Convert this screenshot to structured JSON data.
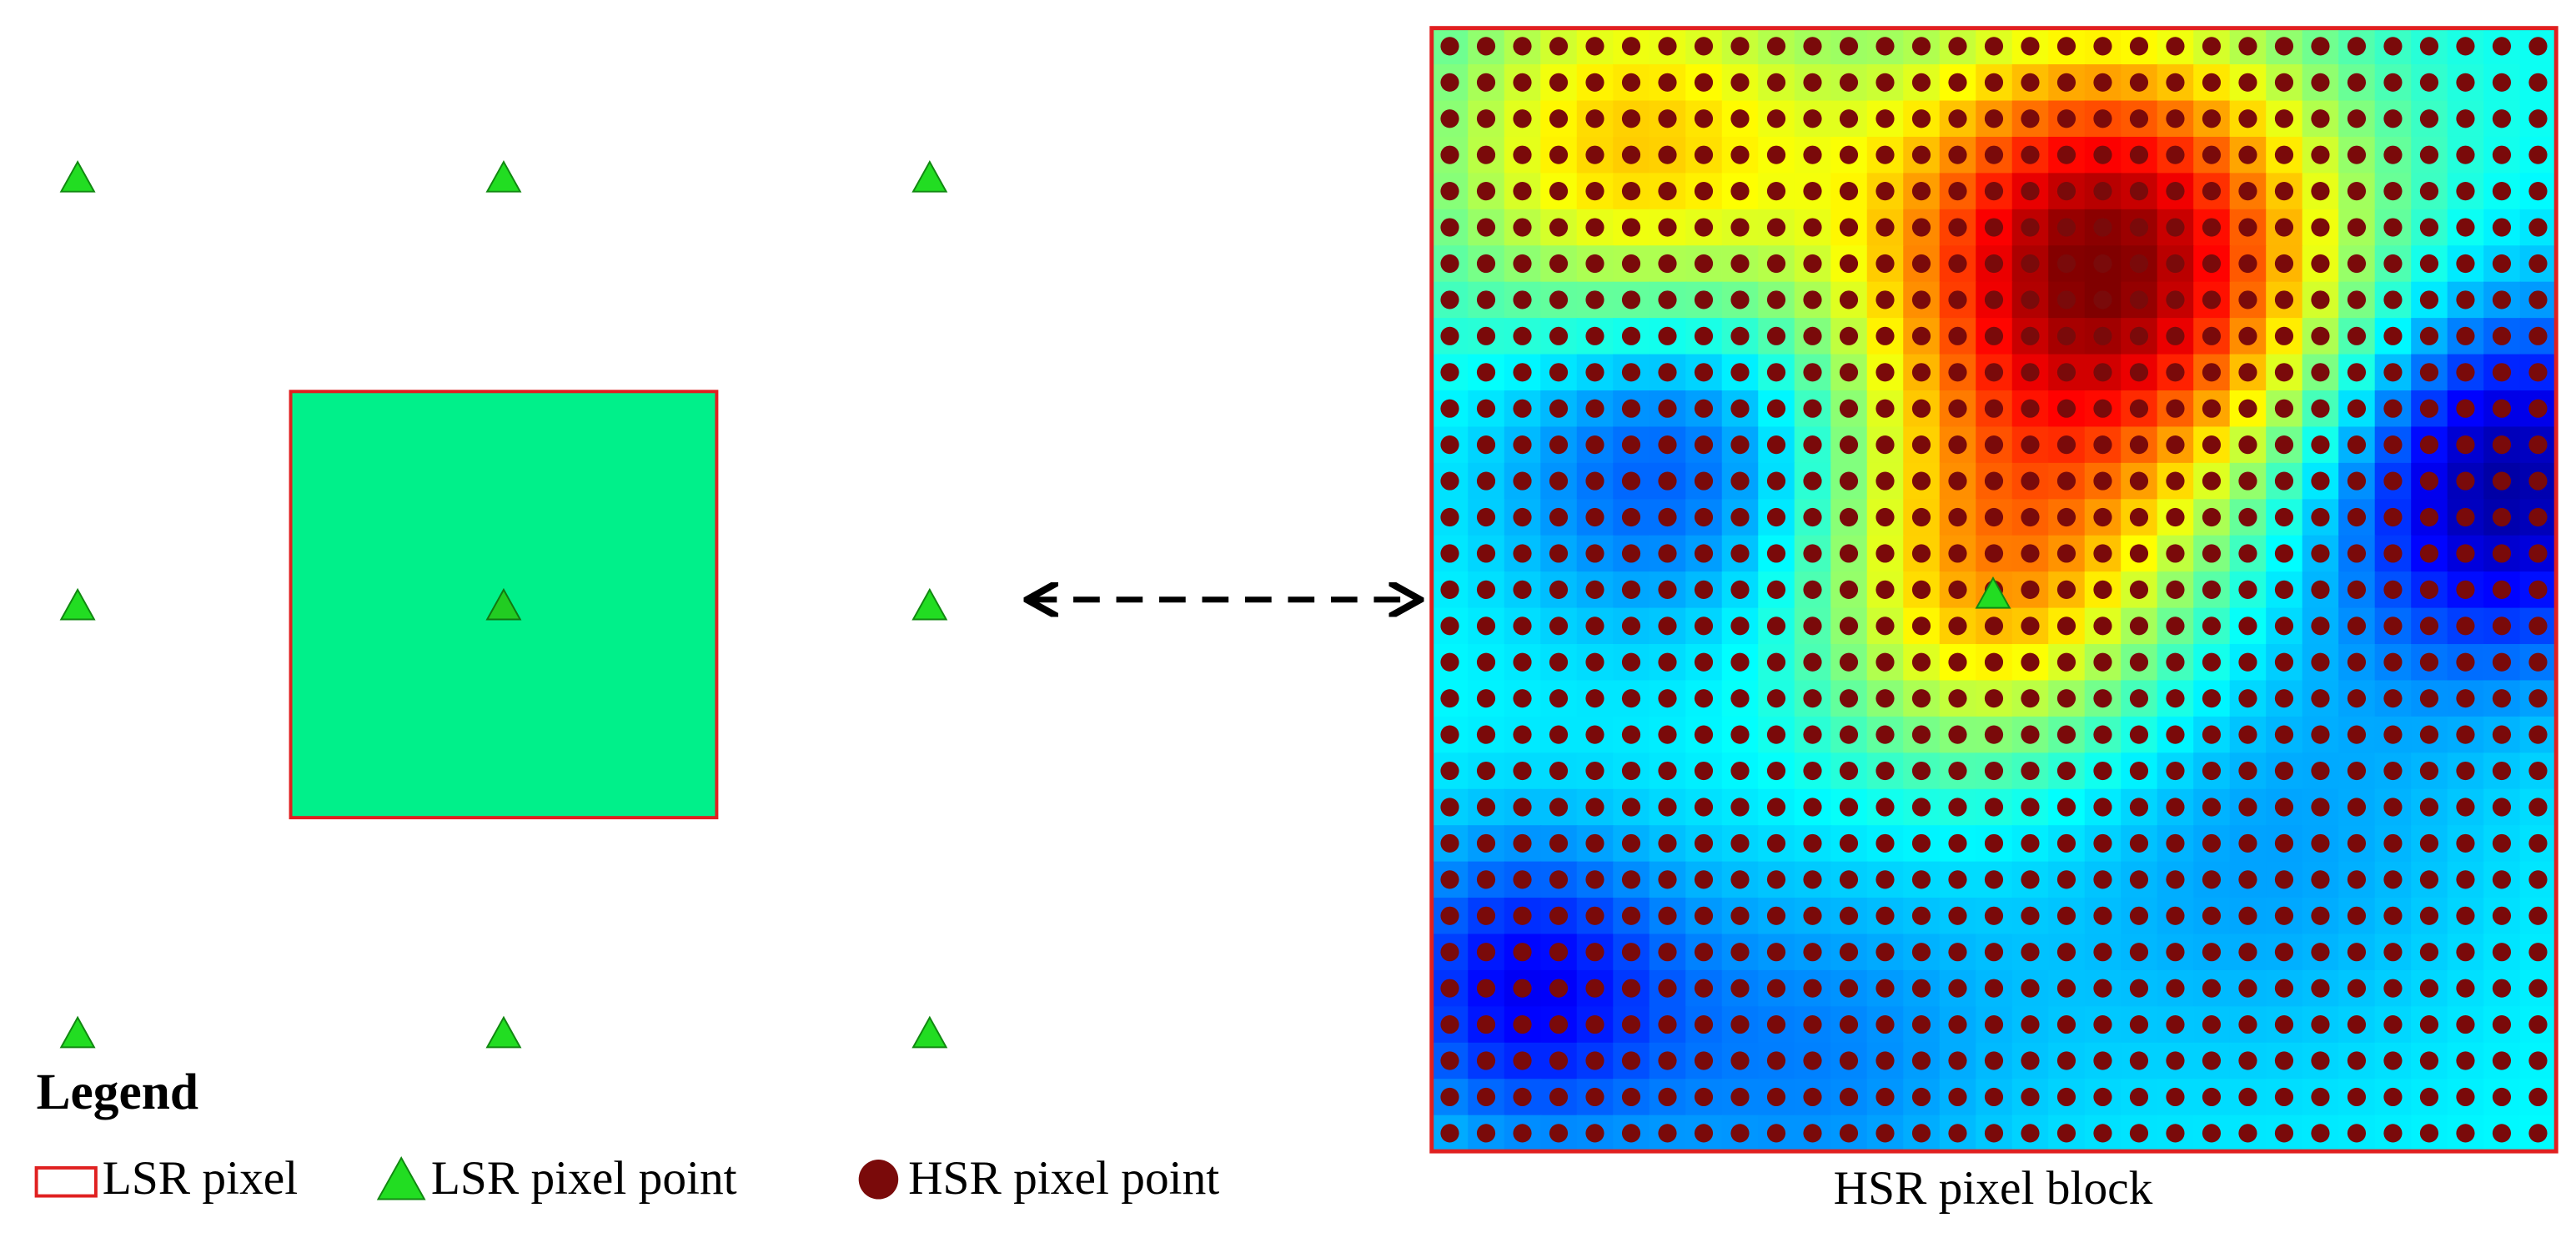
{
  "legend": {
    "title": "Legend",
    "items": [
      "LSR pixel",
      "LSR pixel point",
      "HSR pixel point"
    ]
  },
  "block": {
    "label": "HSR pixel block"
  }
}
